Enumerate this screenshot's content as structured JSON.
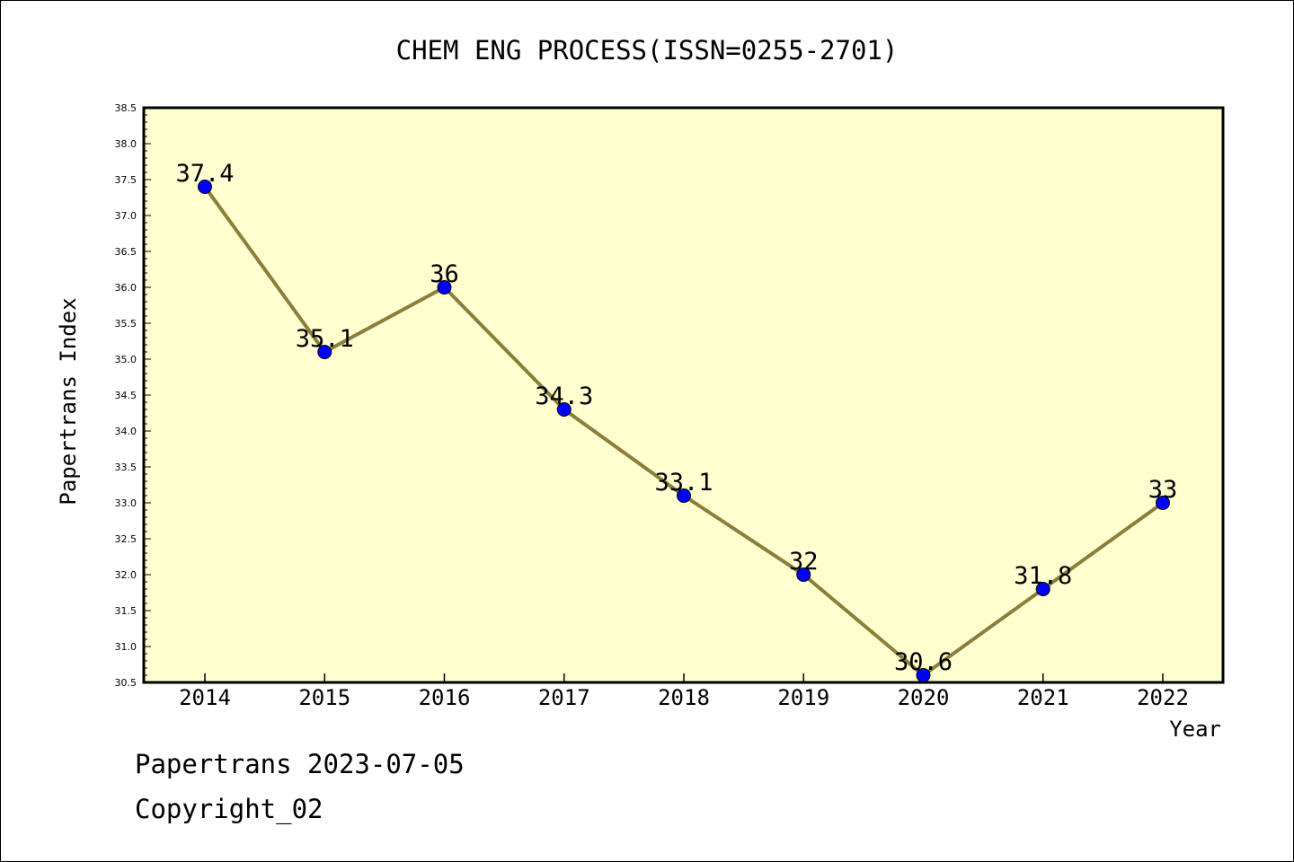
{
  "footer": {
    "line1": "Papertrans 2023-07-05",
    "line2": "Copyright_02"
  },
  "chart_data": {
    "type": "line",
    "title": "CHEM ENG PROCESS(ISSN=0255-2701)",
    "xlabel": "Year",
    "ylabel": "Papertrans Index",
    "categories": [
      "2014",
      "2015",
      "2016",
      "2017",
      "2018",
      "2019",
      "2020",
      "2021",
      "2022"
    ],
    "values": [
      37.4,
      35.1,
      36,
      34.3,
      33.1,
      32,
      30.6,
      31.8,
      33
    ],
    "data_labels": [
      "37.4",
      "35.1",
      "36",
      "34.3",
      "33.1",
      "32",
      "30.6",
      "31.8",
      "33"
    ],
    "ylim": [
      30.5,
      38.5
    ],
    "yticks": [
      "30.5",
      "31.0",
      "31.5",
      "32.0",
      "32.5",
      "33.0",
      "33.5",
      "34.0",
      "34.5",
      "35.0",
      "35.5",
      "36.0",
      "36.5",
      "37.0",
      "37.5",
      "38.0",
      "38.5"
    ],
    "grid": false,
    "colors": {
      "plot_background": "#ffffd0",
      "line": "#8b7d3a",
      "marker": "#0000ff"
    }
  }
}
